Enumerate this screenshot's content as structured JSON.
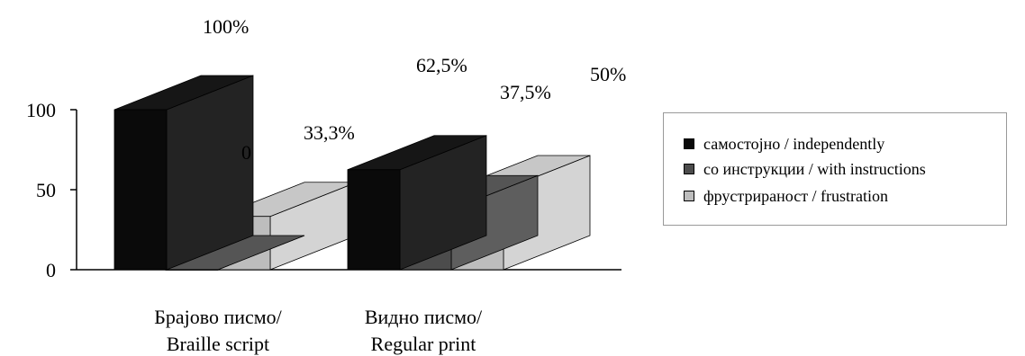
{
  "chart_data": {
    "type": "bar",
    "categories": [
      "Брајово писмо/\nBraille script",
      "Видно писмо/\nRegular print"
    ],
    "series": [
      {
        "name": "самостојно / independently",
        "values": [
          100,
          62.5
        ],
        "labels": [
          "100%",
          "62,5%"
        ],
        "color": "#0a0a0a"
      },
      {
        "name": "со инструкции / with instructions",
        "values": [
          0,
          37.5
        ],
        "labels": [
          "0",
          "37,5%"
        ],
        "color": "#4c4c4c"
      },
      {
        "name": "фрустрираност / frustration",
        "values": [
          33.3,
          50
        ],
        "labels": [
          "33,3%",
          "50%"
        ],
        "color": "#bdbdbd"
      }
    ],
    "yticks": [
      "0",
      "50",
      "100"
    ],
    "ylim": [
      0,
      100
    ],
    "legend": "right",
    "grid": false
  }
}
